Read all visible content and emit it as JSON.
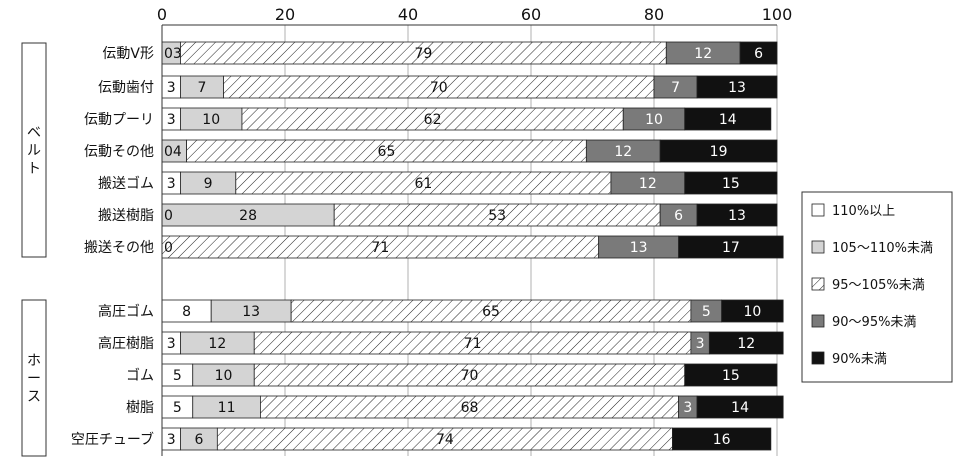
{
  "chart_data": {
    "type": "bar",
    "orientation": "horizontal",
    "stacked": true,
    "xlim": [
      0,
      100
    ],
    "xticks": [
      "0",
      "20",
      "40",
      "60",
      "80",
      "100"
    ],
    "grid": true,
    "legend_position": "right",
    "series": [
      {
        "name": "110%以上",
        "fill": "white"
      },
      {
        "name": "105～110%未満",
        "fill": "lightgray"
      },
      {
        "name": "95～105%未満",
        "fill": "hatch"
      },
      {
        "name": "90～95%未満",
        "fill": "darkgray"
      },
      {
        "name": "90%未満",
        "fill": "black"
      }
    ],
    "groups": [
      {
        "label": "ベルト",
        "rows": [
          {
            "category": "伝動V形",
            "values": [
              0,
              3,
              79,
              12,
              6
            ]
          },
          {
            "category": "伝動歯付",
            "values": [
              3,
              7,
              70,
              7,
              13
            ]
          },
          {
            "category": "伝動プーリ",
            "values": [
              3,
              10,
              62,
              10,
              14
            ]
          },
          {
            "category": "伝動その他",
            "values": [
              0,
              4,
              65,
              12,
              19
            ]
          },
          {
            "category": "搬送ゴム",
            "values": [
              3,
              9,
              61,
              12,
              15
            ]
          },
          {
            "category": "搬送樹脂",
            "values": [
              0,
              28,
              53,
              6,
              13
            ]
          },
          {
            "category": "搬送その他",
            "values": [
              0,
              0,
              71,
              13,
              17
            ]
          }
        ]
      },
      {
        "label": "ホース",
        "rows": [
          {
            "category": "高圧ゴム",
            "values": [
              8,
              13,
              65,
              5,
              10
            ]
          },
          {
            "category": "高圧樹脂",
            "values": [
              3,
              12,
              71,
              3,
              12
            ]
          },
          {
            "category": "ゴム",
            "values": [
              5,
              10,
              70,
              0,
              15
            ]
          },
          {
            "category": "樹脂",
            "values": [
              5,
              11,
              68,
              3,
              14
            ]
          },
          {
            "category": "空圧チューブ",
            "values": [
              3,
              6,
              74,
              0,
              16
            ]
          }
        ]
      }
    ],
    "label_overrides": {
      "伝動V形": [
        "03",
        "79",
        "12",
        "6"
      ],
      "伝動その他": [
        "04",
        "65",
        "12",
        "19"
      ],
      "搬送樹脂": [
        "0",
        "28",
        "53",
        "6",
        "13"
      ],
      "搬送その他": [
        "0",
        "71",
        "13",
        "17"
      ]
    }
  },
  "colors": {
    "white": "#ffffff",
    "lightgray": "#d4d4d4",
    "darkgray": "#7a7a7a",
    "black": "#111111",
    "grid": "#b0b0b0"
  }
}
